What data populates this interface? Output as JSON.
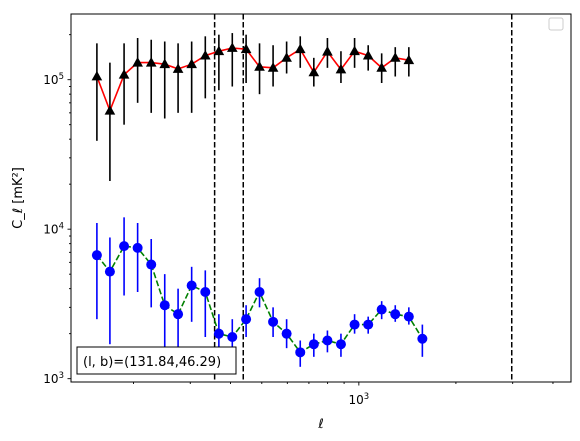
{
  "chart_data": {
    "type": "scatter",
    "xscale": "log",
    "yscale": "log",
    "xlim": [
      128,
      4550
    ],
    "ylim": [
      950,
      275000
    ],
    "xlabel": "ℓ",
    "ylabel": "C_ℓ  [mK²]",
    "xticks": [
      {
        "value": 1000,
        "base": "10",
        "exp": "3"
      }
    ],
    "yticks": [
      {
        "value": 1000,
        "base": "10",
        "exp": "3"
      },
      {
        "value": 10000,
        "base": "10",
        "exp": "4"
      },
      {
        "value": 100000,
        "base": "10",
        "exp": "5"
      }
    ],
    "annotation": "(l, b)=(131.84,46.29)",
    "vlines": [
      357,
      438,
      2980
    ],
    "x": [
      154,
      169,
      187,
      206,
      227,
      250,
      275,
      303,
      334,
      368,
      405,
      447,
      492,
      542,
      597,
      658,
      725,
      799,
      880,
      970,
      1069,
      1177,
      1297,
      1429,
      1574,
      1735,
      1911,
      2106,
      2320,
      2556,
      2816,
      3103,
      3419,
      3767
    ],
    "series": [
      {
        "marker": "triangle",
        "color": "#000000",
        "line_color": "#ff0000",
        "line_style": "solid",
        "values": [
          105000,
          62000,
          108000,
          130000,
          130000,
          127000,
          118000,
          127000,
          145000,
          155000,
          163000,
          160000,
          122000,
          120000,
          140000,
          160000,
          112000,
          154000,
          117000,
          155000,
          145000,
          120000,
          140000,
          135000
        ],
        "x_index_start": 0,
        "x_values": [
          154,
          169,
          187,
          206,
          227,
          250,
          275,
          303,
          334,
          368,
          405,
          447,
          492,
          542,
          597,
          658,
          725,
          799,
          880,
          970,
          1069,
          1177,
          1297,
          1429
        ],
        "err_low": [
          39000,
          21000,
          50000,
          70000,
          60000,
          55000,
          60000,
          60000,
          75000,
          85000,
          90000,
          95000,
          80000,
          90000,
          110000,
          120000,
          90000,
          120000,
          95000,
          120000,
          115000,
          95000,
          105000,
          105000
        ],
        "err_high": [
          175000,
          130000,
          175000,
          190000,
          185000,
          180000,
          175000,
          180000,
          195000,
          200000,
          205000,
          200000,
          175000,
          170000,
          180000,
          195000,
          140000,
          190000,
          155000,
          190000,
          170000,
          150000,
          165000,
          165000
        ]
      },
      {
        "marker": "circle",
        "color": "#0000ff",
        "line_color": "#008000",
        "line_style": "dashed",
        "values": [
          6700,
          5200,
          7700,
          7500,
          5800,
          3100,
          2700,
          4200,
          3800,
          2000,
          1900,
          2500,
          3800,
          2400,
          2000,
          1500,
          1700,
          1800,
          1700,
          2300,
          2300,
          2900,
          2700,
          2600,
          1850
        ],
        "x_values": [
          154,
          169,
          187,
          206,
          227,
          250,
          275,
          303,
          334,
          368,
          405,
          447,
          492,
          542,
          597,
          658,
          725,
          799,
          880,
          970,
          1069,
          1177,
          1297,
          1429,
          1574
        ],
        "err_low": [
          2500,
          1700,
          3600,
          3800,
          3000,
          1500,
          1300,
          2400,
          1900,
          1300,
          1300,
          1900,
          3000,
          1900,
          1600,
          1200,
          1400,
          1500,
          1400,
          2000,
          2000,
          2500,
          2400,
          2300,
          1400
        ],
        "err_high": [
          11000,
          8800,
          12000,
          11000,
          8600,
          5000,
          4000,
          5600,
          5300,
          2700,
          2500,
          3100,
          4700,
          3000,
          2500,
          1800,
          2000,
          2100,
          2000,
          2700,
          2600,
          3300,
          3100,
          3000,
          2300
        ]
      }
    ]
  }
}
